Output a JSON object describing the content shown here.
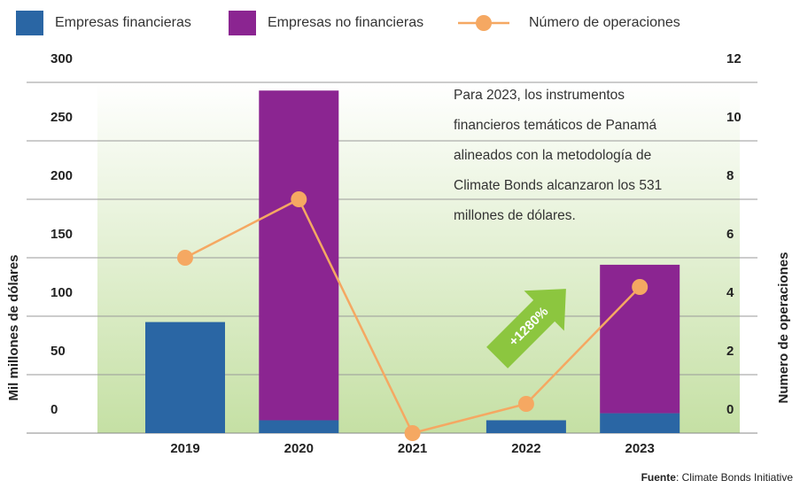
{
  "chart_data": {
    "type": "bar",
    "stacked": true,
    "categories": [
      "2019",
      "2020",
      "2021",
      "2022",
      "2023"
    ],
    "series": [
      {
        "name": "Empresas financieras",
        "type": "bar",
        "color": "#2a66a4",
        "values": [
          95,
          11,
          0,
          11,
          17
        ]
      },
      {
        "name": "Empresas no financieras",
        "type": "bar",
        "color": "#8b2591",
        "values": [
          0,
          282,
          0,
          0,
          127
        ]
      },
      {
        "name": "Número de operaciones",
        "type": "line",
        "axis": "y2",
        "color": "#f5a862",
        "values": [
          6,
          8,
          0,
          1,
          5
        ]
      }
    ],
    "ylim": [
      0,
      300
    ],
    "yticks": [
      0,
      50,
      100,
      150,
      200,
      250,
      300
    ],
    "y2lim": [
      0,
      12
    ],
    "y2ticks": [
      0,
      2,
      4,
      6,
      8,
      10,
      12
    ],
    "ylabel": "Mil millones de dólares",
    "y2label": "Numero de operaciones",
    "grid": true,
    "annotation": [
      "Para 2023, los instrumentos",
      "financieros temáticos de Panamá",
      "alineados con la metodología de",
      "Climate Bonds alcanzaron los 531",
      "millones de dólares."
    ],
    "arrow_label": "+1280%",
    "source": {
      "label": "Fuente",
      "text": ": Climate Bonds Initiative"
    }
  }
}
